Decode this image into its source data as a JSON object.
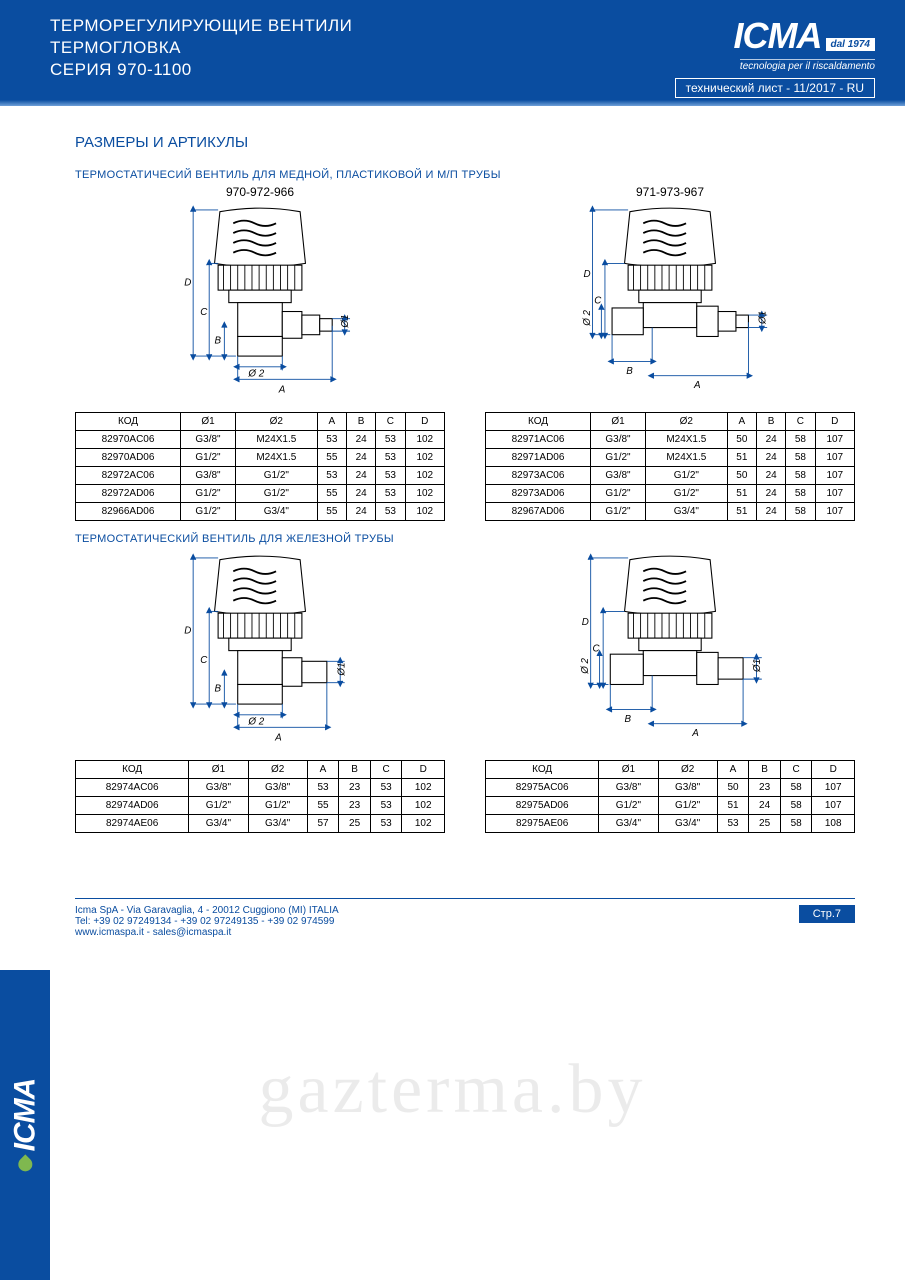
{
  "header": {
    "title_l1": "ТЕРМОРЕГУЛИРУЮЩИЕ ВЕНТИЛИ",
    "title_l2": "ТЕРМОГЛОВКА",
    "title_l3": "СЕРИЯ 970-1100",
    "logo_text": "ICMA",
    "dal": "dal 1974",
    "logo_sub": "tecnologia per il riscaldamento",
    "tech_sheet": "технический лист - 11/2017 - RU"
  },
  "section_h1": "РАЗМЕРЫ И АРТИКУЛЫ",
  "block1": {
    "heading": "ТЕРМОСТАТИЧЕСИЙ ВЕНТИЛЬ ДЛЯ МЕДНОЙ, ПЛАСТИКОВОЙ И М/П ТРУБЫ",
    "left_fig": "970-972-966",
    "right_fig": "971-973-967",
    "columns": [
      "КОД",
      "Ø1",
      "Ø2",
      "A",
      "B",
      "C",
      "D"
    ],
    "left_rows": [
      [
        "82970AC06",
        "G3/8\"",
        "M24X1.5",
        "53",
        "24",
        "53",
        "102"
      ],
      [
        "82970AD06",
        "G1/2\"",
        "M24X1.5",
        "55",
        "24",
        "53",
        "102"
      ],
      [
        "82972AC06",
        "G3/8\"",
        "G1/2\"",
        "53",
        "24",
        "53",
        "102"
      ],
      [
        "82972AD06",
        "G1/2\"",
        "G1/2\"",
        "55",
        "24",
        "53",
        "102"
      ],
      [
        "82966AD06",
        "G1/2\"",
        "G3/4\"",
        "55",
        "24",
        "53",
        "102"
      ]
    ],
    "right_rows": [
      [
        "82971AC06",
        "G3/8\"",
        "M24X1.5",
        "50",
        "24",
        "58",
        "107"
      ],
      [
        "82971AD06",
        "G1/2\"",
        "M24X1.5",
        "51",
        "24",
        "58",
        "107"
      ],
      [
        "82973AC06",
        "G3/8\"",
        "G1/2\"",
        "50",
        "24",
        "58",
        "107"
      ],
      [
        "82973AD06",
        "G1/2\"",
        "G1/2\"",
        "51",
        "24",
        "58",
        "107"
      ],
      [
        "82967AD06",
        "G1/2\"",
        "G3/4\"",
        "51",
        "24",
        "58",
        "107"
      ]
    ]
  },
  "block2": {
    "heading": "ТЕРМОСТАТИЧЕСКИЙ ВЕНТИЛЬ ДЛЯ ЖЕЛЕЗНОЙ ТРУБЫ",
    "columns": [
      "КОД",
      "Ø1",
      "Ø2",
      "A",
      "B",
      "C",
      "D"
    ],
    "left_rows": [
      [
        "82974AC06",
        "G3/8\"",
        "G3/8\"",
        "53",
        "23",
        "53",
        "102"
      ],
      [
        "82974AD06",
        "G1/2\"",
        "G1/2\"",
        "55",
        "23",
        "53",
        "102"
      ],
      [
        "82974AE06",
        "G3/4\"",
        "G3/4\"",
        "57",
        "25",
        "53",
        "102"
      ]
    ],
    "right_rows": [
      [
        "82975AC06",
        "G3/8\"",
        "G3/8\"",
        "50",
        "23",
        "58",
        "107"
      ],
      [
        "82975AD06",
        "G1/2\"",
        "G1/2\"",
        "51",
        "24",
        "58",
        "107"
      ],
      [
        "82975AE06",
        "G3/4\"",
        "G3/4\"",
        "53",
        "25",
        "58",
        "108"
      ]
    ]
  },
  "diagrams": {
    "dim_labels": {
      "A": "A",
      "B": "B",
      "C": "C",
      "D": "D",
      "d1": "Ø1",
      "d2": "Ø 2"
    }
  },
  "footer": {
    "addr": "Icma SpA - Via Garavaglia, 4 - 20012 Cuggiono (MI) ITALIA",
    "tel": "Tel: +39 02 97249134 - +39 02 97249135 - +39 02 974599",
    "web": "www.icmaspa.it - sales@icmaspa.it",
    "page": "Стр.7"
  },
  "watermark": "gazterma.by",
  "colors": {
    "brand_blue": "#0a4da0",
    "dim_stroke": "#0a4da0",
    "fig_fill": "#ffffff",
    "fig_stroke": "#000000",
    "fig_label": "#000000"
  }
}
